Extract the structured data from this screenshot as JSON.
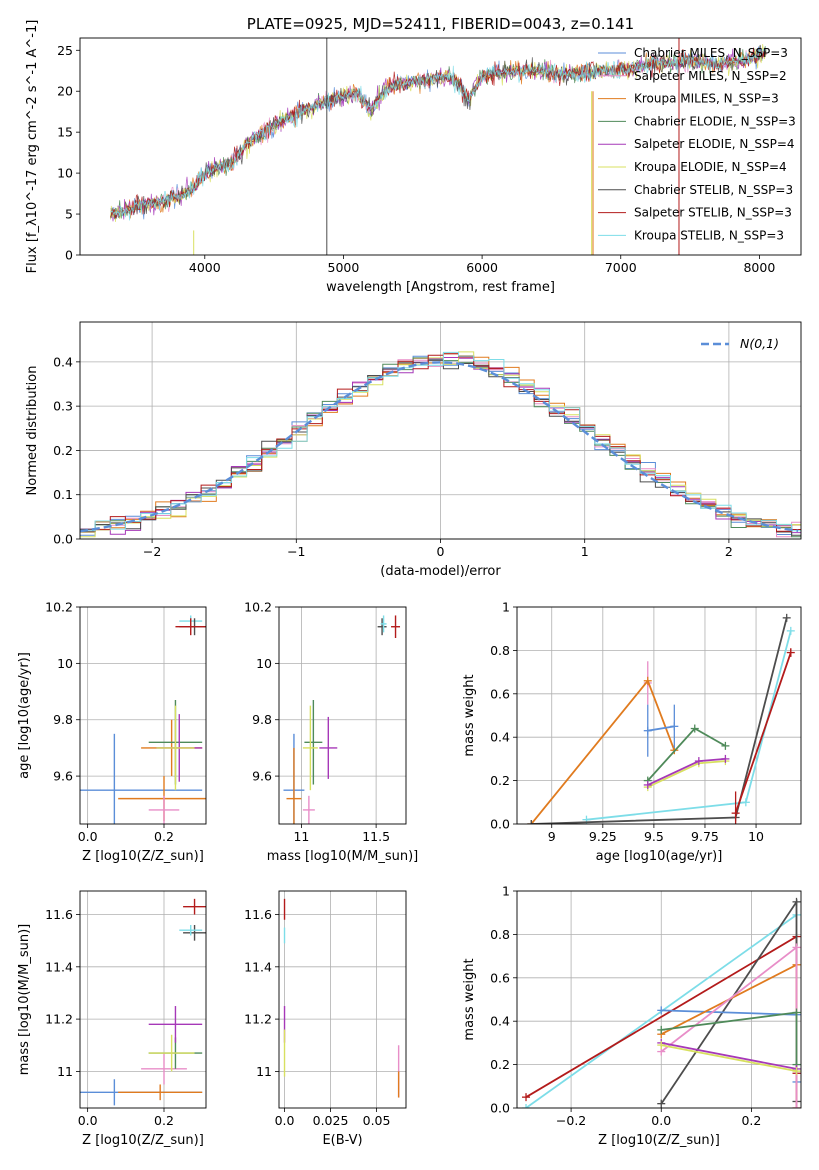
{
  "chart_data": [
    {
      "id": "spectrum",
      "type": "line",
      "title": "PLATE=0925, MJD=52411, FIBERID=0043, z=0.141",
      "xlabel": "wavelength [Angstrom, rest frame]",
      "ylabel": "Flux [f_λ10^-17 erg cm^-2 s^-1 A^-1]",
      "xlim": [
        3100,
        8300
      ],
      "ylim": [
        0,
        26.5
      ],
      "xticks": [
        4000,
        5000,
        6000,
        7000,
        8000
      ],
      "yticks": [
        0,
        5,
        10,
        15,
        20,
        25
      ],
      "grid": false,
      "legend": "top-right",
      "continuum": {
        "x": [
          3320,
          3400,
          3500,
          3600,
          3700,
          3800,
          3900,
          4000,
          4100,
          4200,
          4300,
          4400,
          4500,
          4600,
          4700,
          4800,
          4900,
          5000,
          5100,
          5200,
          5300,
          5400,
          5500,
          5600,
          5700,
          5800,
          5900,
          6000,
          6100,
          6200,
          6300,
          6400,
          6500,
          6600,
          6700,
          6800,
          6900,
          7000,
          7100,
          7200,
          7300,
          7400,
          7500,
          7600,
          7700,
          7800,
          7900,
          8000,
          8050
        ],
        "y": [
          5.0,
          5.3,
          5.8,
          6.3,
          6.6,
          7.2,
          7.8,
          10.0,
          10.8,
          11.3,
          13.5,
          14.8,
          15.8,
          16.8,
          17.5,
          18.3,
          18.8,
          19.5,
          19.8,
          17.8,
          20.2,
          20.8,
          21.2,
          21.5,
          21.8,
          21.6,
          19.0,
          21.8,
          22.2,
          22.4,
          22.6,
          22.5,
          22.3,
          22.1,
          22.3,
          22.3,
          22.6,
          22.6,
          22.9,
          23.3,
          23.5,
          23.4,
          23.7,
          23.6,
          23.3,
          23.6,
          23.9,
          24.3,
          25.0
        ]
      },
      "series": [
        {
          "name": "Chabrier MILES, N_SSP=3",
          "color": "#5b8ed8"
        },
        {
          "name": "Salpeter MILES, N_SSP=2",
          "color": "#e88ec8"
        },
        {
          "name": "Kroupa MILES, N_SSP=3",
          "color": "#e07b1f"
        },
        {
          "name": "Chabrier ELODIE, N_SSP=3",
          "color": "#4f8a5a"
        },
        {
          "name": "Salpeter ELODIE, N_SSP=4",
          "color": "#a638b8"
        },
        {
          "name": "Kroupa ELODIE, N_SSP=4",
          "color": "#d8e060"
        },
        {
          "name": "Chabrier STELIB, N_SSP=3",
          "color": "#4d4d4d"
        },
        {
          "name": "Salpeter STELIB, N_SSP=3",
          "color": "#b31b1b"
        },
        {
          "name": "Kroupa STELIB, N_SSP=3",
          "color": "#7ddde8"
        }
      ]
    },
    {
      "id": "residuals",
      "type": "histogram",
      "xlabel": "(data-model)/error",
      "ylabel": "Normed distribution",
      "xlim": [
        -2.5,
        2.5
      ],
      "ylim": [
        0,
        0.49
      ],
      "xticks": [
        -2,
        -1,
        0,
        1,
        2
      ],
      "yticks": [
        0.0,
        0.1,
        0.2,
        0.3,
        0.4
      ],
      "grid": true,
      "legend": "top-right",
      "gaussian_label": "N(0,1)",
      "gaussian_color": "#5b8ed8"
    },
    {
      "id": "age-vs-Z",
      "type": "scatter",
      "xlabel": "Z [log10(Z/Z_sun)]",
      "ylabel": "age [log10(age/yr)]",
      "xlim": [
        -0.02,
        0.31
      ],
      "ylim": [
        9.43,
        10.2
      ],
      "xticks": [
        0.0,
        0.2
      ],
      "yticks": [
        9.6,
        9.8,
        10.0,
        10.2
      ],
      "grid": true,
      "points": [
        {
          "x": 0.07,
          "y": 9.55,
          "xerr": 0.23,
          "yerr": 0.2,
          "color": "#5b8ed8"
        },
        {
          "x": 0.2,
          "y": 9.52,
          "xerr": 0.12,
          "yerr": 0.08,
          "color": "#e07b1f"
        },
        {
          "x": 0.2,
          "y": 9.48,
          "xerr": 0.04,
          "yerr": 0.05,
          "color": "#e88ec8"
        },
        {
          "x": 0.22,
          "y": 9.7,
          "xerr": 0.08,
          "yerr": 0.1,
          "color": "#e07b1f"
        },
        {
          "x": 0.23,
          "y": 9.72,
          "xerr": 0.07,
          "yerr": 0.15,
          "color": "#4f8a5a"
        },
        {
          "x": 0.24,
          "y": 9.7,
          "xerr": 0.06,
          "yerr": 0.12,
          "color": "#a638b8"
        },
        {
          "x": 0.23,
          "y": 9.7,
          "xerr": 0.05,
          "yerr": 0.15,
          "color": "#d8e060"
        },
        {
          "x": 0.27,
          "y": 10.15,
          "xerr": 0.03,
          "yerr": 0.02,
          "color": "#7ddde8"
        },
        {
          "x": 0.28,
          "y": 10.13,
          "xerr": 0.04,
          "yerr": 0.03,
          "color": "#4d4d4d"
        },
        {
          "x": 0.27,
          "y": 10.13,
          "xerr": 0.04,
          "yerr": 0.03,
          "color": "#b31b1b"
        }
      ]
    },
    {
      "id": "age-vs-mass",
      "type": "scatter",
      "xlabel": "mass [log10(M/M_sun)]",
      "ylabel": "",
      "xlim": [
        10.85,
        11.7
      ],
      "ylim": [
        9.43,
        10.2
      ],
      "xticks": [
        11.0,
        11.5
      ],
      "yticks": [
        9.6,
        9.8,
        10.0,
        10.2
      ],
      "grid": true,
      "points": [
        {
          "x": 10.95,
          "y": 9.55,
          "xerr": 0.07,
          "yerr": 0.2,
          "color": "#5b8ed8"
        },
        {
          "x": 10.95,
          "y": 9.52,
          "xerr": 0.05,
          "yerr": 0.18,
          "color": "#e07b1f"
        },
        {
          "x": 11.05,
          "y": 9.48,
          "xerr": 0.04,
          "yerr": 0.05,
          "color": "#e88ec8"
        },
        {
          "x": 11.08,
          "y": 9.72,
          "xerr": 0.06,
          "yerr": 0.15,
          "color": "#4f8a5a"
        },
        {
          "x": 11.18,
          "y": 9.7,
          "xerr": 0.06,
          "yerr": 0.11,
          "color": "#a638b8"
        },
        {
          "x": 11.06,
          "y": 9.7,
          "xerr": 0.05,
          "yerr": 0.15,
          "color": "#d8e060"
        },
        {
          "x": 11.54,
          "y": 10.13,
          "xerr": 0.03,
          "yerr": 0.03,
          "color": "#4d4d4d"
        },
        {
          "x": 11.55,
          "y": 10.14,
          "xerr": 0.02,
          "yerr": 0.03,
          "color": "#7ddde8"
        },
        {
          "x": 11.63,
          "y": 10.13,
          "xerr": 0.03,
          "yerr": 0.04,
          "color": "#b31b1b"
        }
      ]
    },
    {
      "id": "weight-vs-age",
      "type": "line",
      "xlabel": "age [log10(age/yr)]",
      "ylabel": "mass weight",
      "xlim": [
        8.83,
        10.22
      ],
      "ylim": [
        0,
        1.0
      ],
      "xticks": [
        9.0,
        9.25,
        9.5,
        9.75,
        10.0
      ],
      "yticks": [
        0.0,
        0.2,
        0.4,
        0.6,
        0.8,
        1.0
      ],
      "grid": true,
      "series": [
        {
          "color": "#e88ec8",
          "x": [
            9.47
          ],
          "y": [
            0.65
          ],
          "yerr": [
            0.1
          ]
        },
        {
          "color": "#e07b1f",
          "x": [
            8.9,
            9.47,
            9.6
          ],
          "y": [
            0.0,
            0.66,
            0.34
          ]
        },
        {
          "color": "#5b8ed8",
          "x": [
            9.47,
            9.6
          ],
          "y": [
            0.43,
            0.45
          ],
          "yerr": [
            0.12,
            0.1
          ]
        },
        {
          "color": "#4f8a5a",
          "x": [
            9.47,
            9.7,
            9.85
          ],
          "y": [
            0.2,
            0.44,
            0.36
          ]
        },
        {
          "color": "#d8e060",
          "x": [
            9.47,
            9.72,
            9.85
          ],
          "y": [
            0.17,
            0.28,
            0.29
          ]
        },
        {
          "color": "#a638b8",
          "x": [
            9.47,
            9.72,
            9.85
          ],
          "y": [
            0.18,
            0.29,
            0.3
          ]
        },
        {
          "color": "#7ddde8",
          "x": [
            9.17,
            9.95,
            10.17
          ],
          "y": [
            0.02,
            0.1,
            0.89
          ]
        },
        {
          "color": "#4d4d4d",
          "x": [
            8.9,
            9.9,
            10.15
          ],
          "y": [
            0.0,
            0.03,
            0.95
          ]
        },
        {
          "color": "#b31b1b",
          "x": [
            9.9,
            10.17
          ],
          "y": [
            0.05,
            0.79
          ],
          "yerr": [
            0.1,
            0.02
          ]
        }
      ]
    },
    {
      "id": "mass-vs-Z",
      "type": "scatter",
      "xlabel": "Z [log10(Z/Z_sun)]",
      "ylabel": "mass [log10(M/M_sun)]",
      "xlim": [
        -0.02,
        0.31
      ],
      "ylim": [
        10.86,
        11.69
      ],
      "xticks": [
        0.0,
        0.2
      ],
      "yticks": [
        11.0,
        11.2,
        11.4,
        11.6
      ],
      "grid": true,
      "points": [
        {
          "x": 0.07,
          "y": 10.92,
          "xerr": 0.23,
          "yerr": 0.05,
          "color": "#5b8ed8"
        },
        {
          "x": 0.19,
          "y": 10.92,
          "xerr": 0.11,
          "yerr": 0.03,
          "color": "#e07b1f"
        },
        {
          "x": 0.2,
          "y": 11.01,
          "xerr": 0.06,
          "yerr": 0.06,
          "color": "#e88ec8"
        },
        {
          "x": 0.23,
          "y": 11.07,
          "xerr": 0.07,
          "yerr": 0.06,
          "color": "#4f8a5a"
        },
        {
          "x": 0.23,
          "y": 11.18,
          "xerr": 0.07,
          "yerr": 0.07,
          "color": "#a638b8"
        },
        {
          "x": 0.22,
          "y": 11.07,
          "xerr": 0.06,
          "yerr": 0.07,
          "color": "#d8e060"
        },
        {
          "x": 0.28,
          "y": 11.53,
          "xerr": 0.03,
          "yerr": 0.03,
          "color": "#4d4d4d"
        },
        {
          "x": 0.27,
          "y": 11.54,
          "xerr": 0.03,
          "yerr": 0.02,
          "color": "#7ddde8"
        },
        {
          "x": 0.28,
          "y": 11.63,
          "xerr": 0.03,
          "yerr": 0.03,
          "color": "#b31b1b"
        }
      ]
    },
    {
      "id": "mass-vs-ebv",
      "type": "scatter",
      "xlabel": "E(B-V)",
      "ylabel": "",
      "xlim": [
        -0.003,
        0.066
      ],
      "ylim": [
        10.86,
        11.69
      ],
      "xticks": [
        0.0,
        0.025,
        0.05
      ],
      "yticks": [
        11.0,
        11.2,
        11.4,
        11.6
      ],
      "grid": true,
      "points": [
        {
          "x": 0.0,
          "y": 11.62,
          "yerr": 0.04,
          "color": "#b31b1b"
        },
        {
          "x": 0.0,
          "y": 11.52,
          "yerr": 0.03,
          "color": "#7ddde8"
        },
        {
          "x": 0.0,
          "y": 11.18,
          "yerr": 0.07,
          "color": "#a638b8"
        },
        {
          "x": 0.0,
          "y": 11.07,
          "yerr": 0.09,
          "color": "#d8e060"
        },
        {
          "x": 0.062,
          "y": 11.0,
          "yerr": 0.1,
          "color": "#e88ec8"
        },
        {
          "x": 0.062,
          "y": 10.95,
          "yerr": 0.05,
          "color": "#e07b1f"
        }
      ]
    },
    {
      "id": "weight-vs-Z",
      "type": "line",
      "xlabel": "Z [log10(Z/Z_sun)]",
      "ylabel": "mass weight",
      "xlim": [
        -0.32,
        0.31
      ],
      "ylim": [
        0,
        1.0
      ],
      "xticks": [
        -0.2,
        0.0,
        0.2
      ],
      "yticks": [
        0.0,
        0.2,
        0.4,
        0.6,
        0.8,
        1.0
      ],
      "grid": true,
      "series": [
        {
          "color": "#7ddde8",
          "x": [
            -0.3,
            0.3
          ],
          "y": [
            0.0,
            0.89
          ]
        },
        {
          "color": "#b31b1b",
          "x": [
            -0.3,
            0.3,
            0.3
          ],
          "y": [
            0.05,
            0.79,
            0.16
          ]
        },
        {
          "color": "#4d4d4d",
          "x": [
            0.0,
            0.3,
            0.3
          ],
          "y": [
            0.02,
            0.95,
            0.03
          ]
        },
        {
          "color": "#5b8ed8",
          "x": [
            0.0,
            0.3,
            0.3
          ],
          "y": [
            0.45,
            0.43,
            0.12
          ]
        },
        {
          "color": "#e07b1f",
          "x": [
            0.0,
            0.3,
            0.3
          ],
          "y": [
            0.34,
            0.66,
            0.0
          ]
        },
        {
          "color": "#e88ec8",
          "x": [
            0.0,
            0.3,
            0.3
          ],
          "y": [
            0.26,
            0.74,
            0.0
          ]
        },
        {
          "color": "#4f8a5a",
          "x": [
            0.0,
            0.3,
            0.3
          ],
          "y": [
            0.36,
            0.44,
            0.2
          ]
        },
        {
          "color": "#a638b8",
          "x": [
            0.0,
            0.3
          ],
          "y": [
            0.3,
            0.18
          ]
        },
        {
          "color": "#d8e060",
          "x": [
            0.0,
            0.3
          ],
          "y": [
            0.29,
            0.17
          ]
        }
      ]
    }
  ]
}
